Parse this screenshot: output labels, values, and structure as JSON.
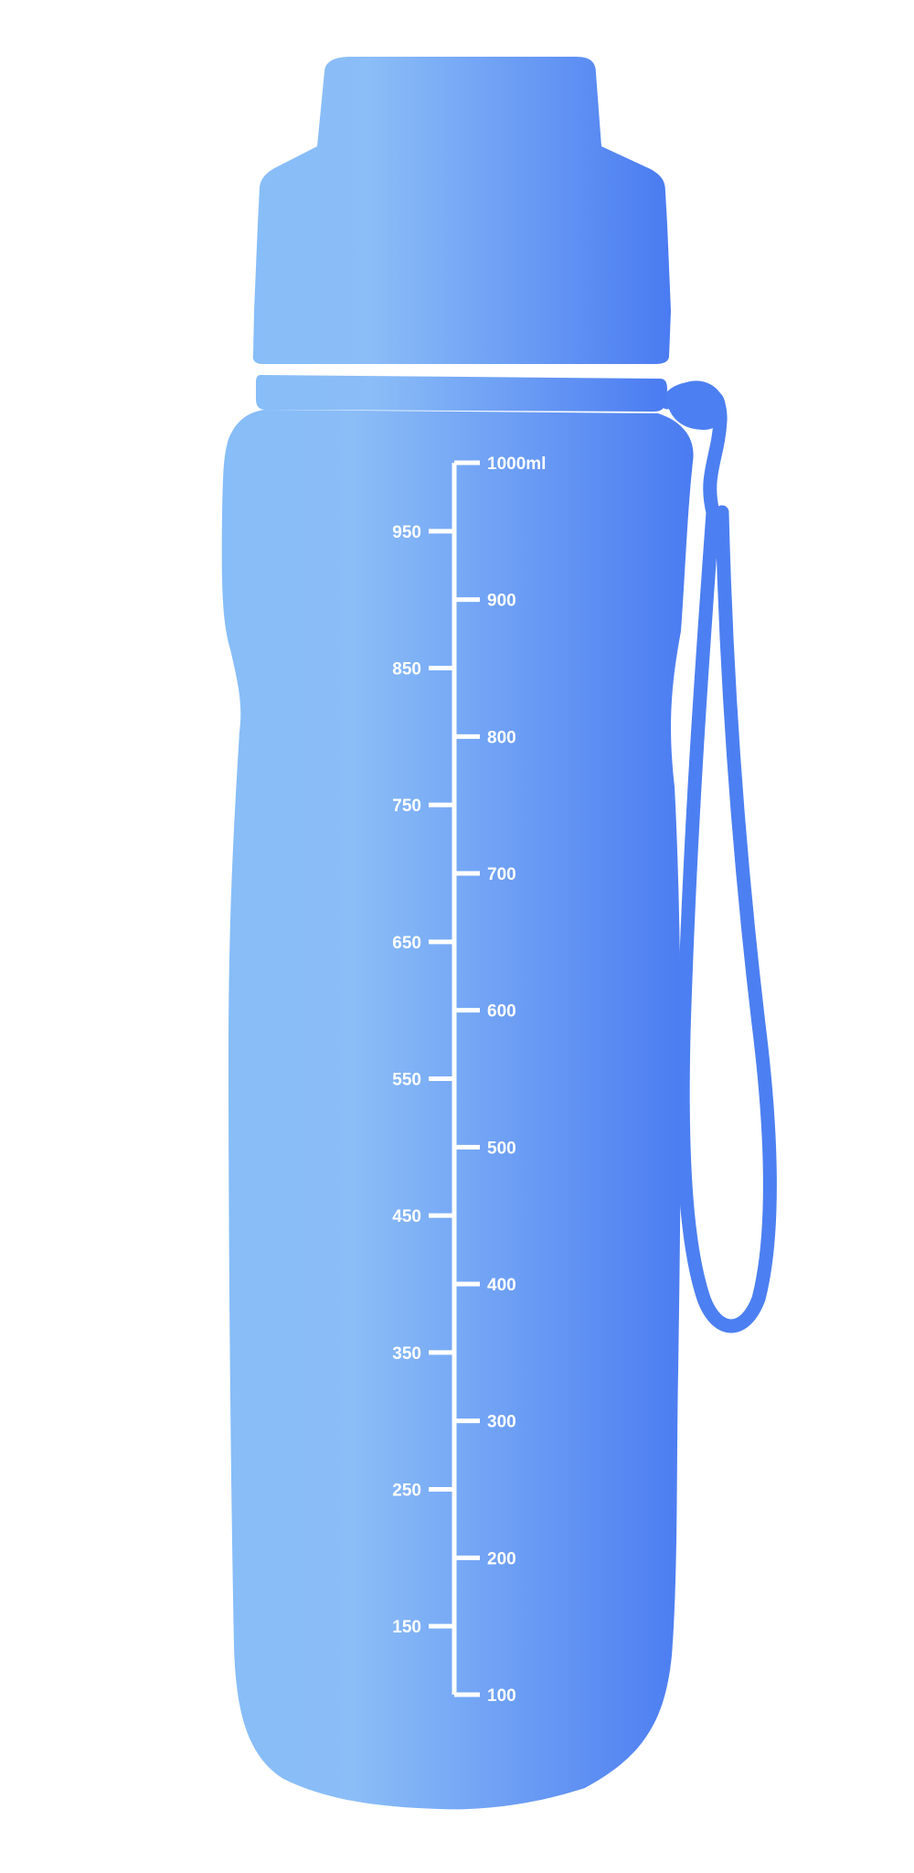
{
  "colors": {
    "gradient_light": "#87bdf8",
    "gradient_mid": "#8bbdf7",
    "gradient_dark": "#4a7bf1",
    "strap": "#4c7ff1",
    "markings": "#ffffff"
  },
  "scale": {
    "unit": "ml",
    "top_label": "1000ml",
    "min": 100,
    "max": 1000,
    "step": 50,
    "left_labels": [
      "950",
      "850",
      "750",
      "650",
      "550",
      "450",
      "350",
      "250",
      "150"
    ],
    "right_labels": [
      "900",
      "800",
      "700",
      "600",
      "500",
      "400",
      "300",
      "200",
      "100"
    ]
  }
}
